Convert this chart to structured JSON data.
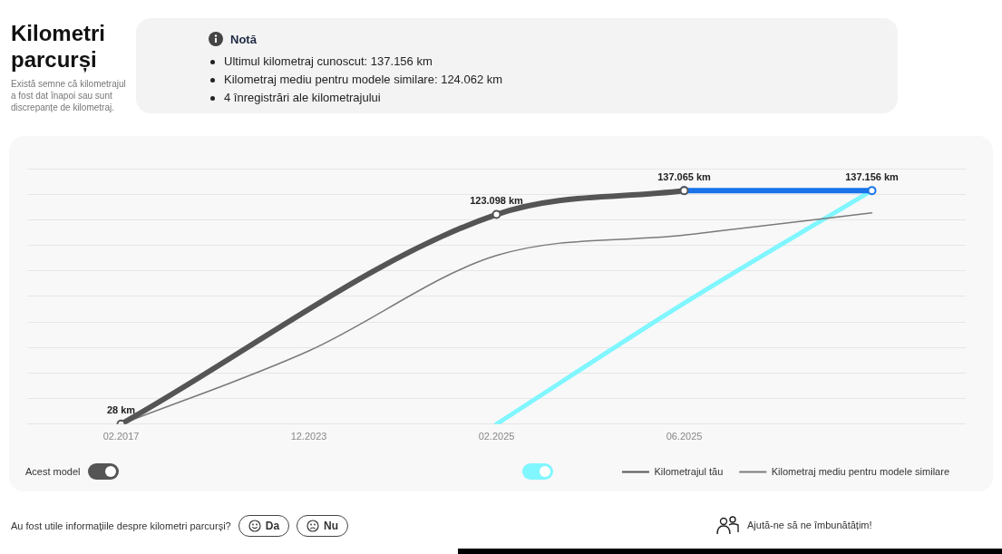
{
  "chart_data": {
    "type": "line",
    "title": "Kilometri parcurși",
    "subtitle": "Există semne că kilometrajul a fost dat înapoi sau sunt discrepanțe de kilometraj.",
    "categories": [
      "02.2017",
      "12.2023",
      "02.2025",
      "06.2025",
      null
    ],
    "series": [
      {
        "name": "Kilometrajul tău",
        "color": "#555555",
        "values": [
          28,
          null,
          123098,
          137065,
          null
        ],
        "value_labels": [
          "28 km",
          null,
          "123.098 km",
          "137.065 km",
          null
        ],
        "marker": "circle"
      },
      {
        "color": "#1a73e8",
        "values": [
          null,
          null,
          null,
          137065,
          137156
        ],
        "value_labels": [
          null,
          null,
          null,
          null,
          "137.156 km"
        ],
        "marker": "circle"
      },
      {
        "name": "Kilometraj mediu pentru modele similare",
        "color": "#7a7a7a",
        "values": [
          28,
          43000,
          99000,
          111000,
          124062
        ]
      },
      {
        "color": "#80f6ff",
        "values": [
          null,
          null,
          0,
          71000,
          137156
        ]
      }
    ],
    "ylim": [
      0,
      150000
    ],
    "yticks": [
      {
        "value": 0,
        "label": null
      },
      {
        "value": 15000,
        "label": null
      },
      {
        "value": 30000,
        "label": null
      },
      {
        "value": 45000,
        "label": null
      },
      {
        "value": 60000,
        "label": null
      },
      {
        "value": 75000,
        "label": null
      },
      {
        "value": 90000,
        "label": null
      },
      {
        "value": 105000,
        "label": null
      },
      {
        "value": 120000,
        "label": null
      },
      {
        "value": 135000,
        "label": null
      },
      {
        "value": 150000,
        "label": null
      }
    ],
    "tick_labels": "x",
    "grid": "y",
    "legend": "bottom right",
    "marker": "none",
    "annotations": [
      "Notă",
      "Ultimul kilometraj cunoscut: 137.156 km",
      "Kilometraj mediu pentru modele similare: 124.062 km",
      "4 înregistrări ale kilometrajului",
      "Acest model",
      "Au fost utile informațiile despre kilometri parcurși?",
      "Da",
      "Nu",
      "Ajută-ne să ne îmbunătățim!"
    ]
  }
}
